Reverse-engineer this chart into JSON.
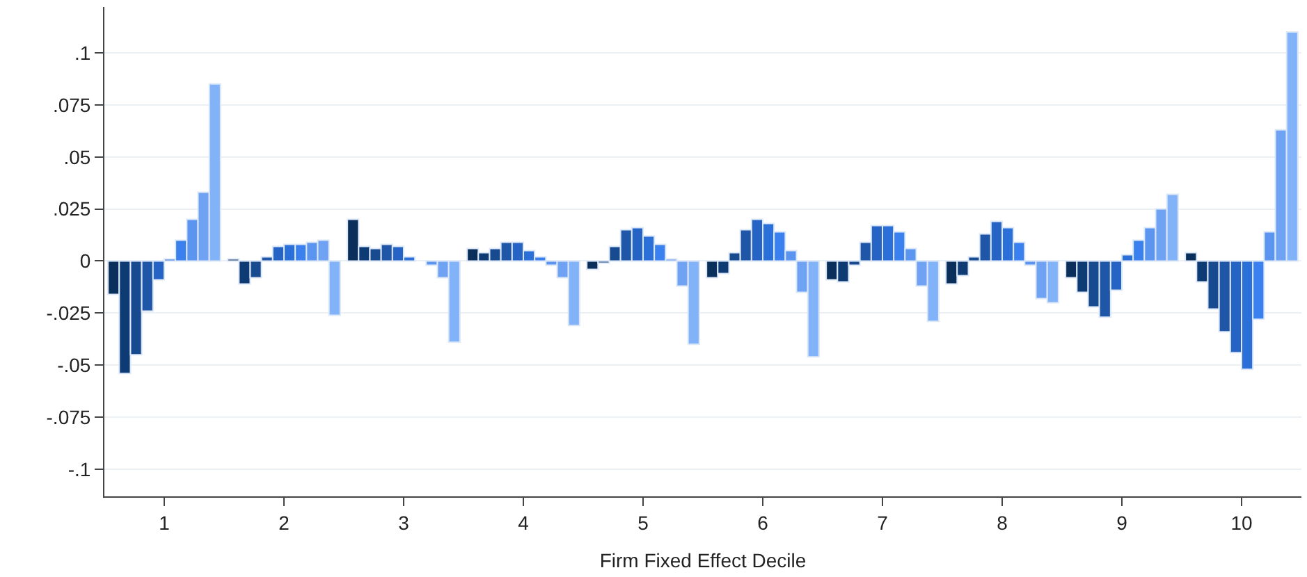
{
  "chart_data": {
    "type": "bar",
    "xlabel": "Firm Fixed Effect Decile",
    "categories": [
      "1",
      "2",
      "3",
      "4",
      "5",
      "6",
      "7",
      "8",
      "9",
      "10"
    ],
    "series": [
      {
        "color": "#0b2f5b",
        "values": [
          -0.016,
          0.001,
          0.02,
          0.006,
          -0.004,
          -0.008,
          -0.009,
          -0.011,
          -0.008,
          0.004
        ]
      },
      {
        "color": "#0f3b75",
        "values": [
          -0.054,
          -0.011,
          0.007,
          0.004,
          -0.001,
          -0.006,
          -0.01,
          -0.007,
          -0.015,
          -0.01
        ]
      },
      {
        "color": "#174a8e",
        "values": [
          -0.045,
          -0.008,
          0.006,
          0.006,
          0.007,
          0.004,
          -0.002,
          0.002,
          -0.022,
          -0.023
        ]
      },
      {
        "color": "#1f56a8",
        "values": [
          -0.024,
          0.002,
          0.008,
          0.009,
          0.015,
          0.015,
          0.009,
          0.013,
          -0.027,
          -0.034
        ]
      },
      {
        "color": "#2563c4",
        "values": [
          -0.009,
          0.007,
          0.007,
          0.009,
          0.016,
          0.02,
          0.017,
          0.019,
          -0.014,
          -0.044
        ]
      },
      {
        "color": "#2b6fd8",
        "values": [
          0.001,
          0.008,
          0.002,
          0.005,
          0.012,
          0.018,
          0.017,
          0.016,
          0.003,
          -0.052
        ]
      },
      {
        "color": "#3a80ee",
        "values": [
          0.01,
          0.008,
          null,
          0.002,
          0.008,
          0.014,
          0.014,
          0.009,
          0.01,
          -0.028
        ]
      },
      {
        "color": "#5b95f0",
        "values": [
          0.02,
          0.009,
          -0.002,
          -0.002,
          0.001,
          0.005,
          0.006,
          -0.002,
          0.016,
          0.014
        ]
      },
      {
        "color": "#6fa2f2",
        "values": [
          0.033,
          0.01,
          -0.008,
          -0.008,
          -0.012,
          -0.015,
          -0.012,
          -0.018,
          0.025,
          0.063
        ]
      },
      {
        "color": "#82b2f7",
        "values": [
          0.085,
          -0.026,
          -0.039,
          -0.031,
          -0.04,
          -0.046,
          -0.029,
          -0.02,
          0.032,
          0.11
        ]
      }
    ],
    "ylim": [
      -0.113,
      0.122
    ],
    "yticks": [
      {
        "value": -0.1,
        "label": "-.1"
      },
      {
        "value": -0.075,
        "label": "-.075"
      },
      {
        "value": -0.05,
        "label": "-.05"
      },
      {
        "value": -0.025,
        "label": "-.025"
      },
      0,
      {
        "value": 0.025,
        "label": ".025"
      },
      {
        "value": 0.05,
        "label": ".05"
      },
      {
        "value": 0.075,
        "label": ".075"
      },
      {
        "value": 0.1,
        "label": ".1"
      }
    ],
    "grid": "y"
  }
}
